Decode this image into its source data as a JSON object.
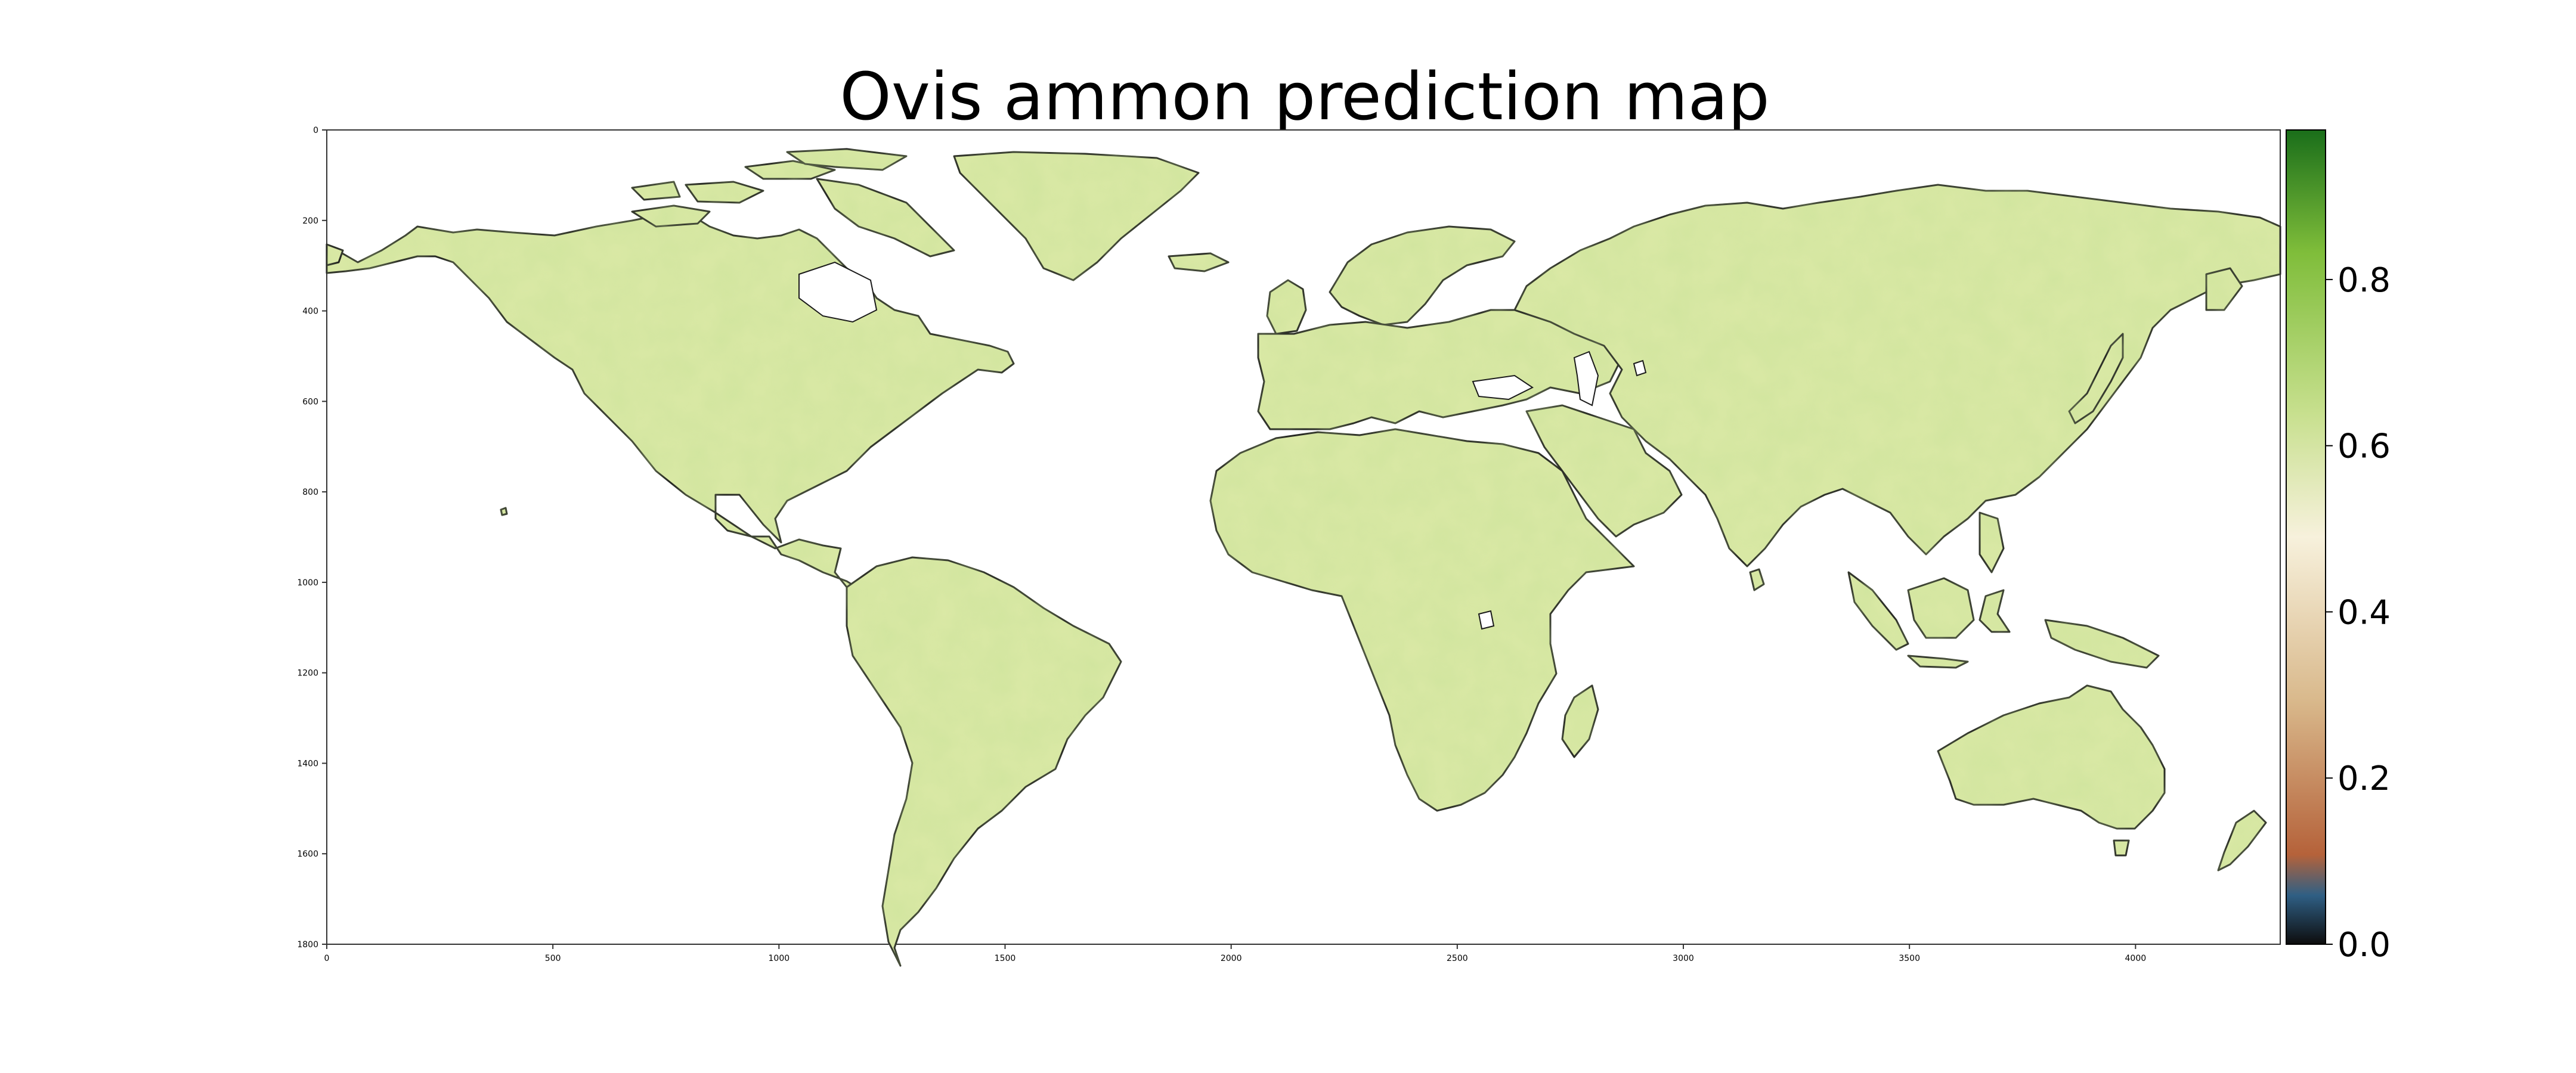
{
  "title": "Ovis ammon prediction map",
  "colors": {
    "land_base": "#dbe9a6",
    "land_dark": "#b9d784",
    "coast": "#1a1a1a",
    "frame": "#333333",
    "colormap": [
      "#0d0d0d",
      "#2f5f84",
      "#b5623a",
      "#d9b98c",
      "#f7f1dc",
      "#c8e08f",
      "#7fbd3a",
      "#1a6e1a"
    ]
  },
  "axes": {
    "x_ticks": [
      "0",
      "500",
      "1000",
      "1500",
      "2000",
      "2500",
      "3000",
      "3500",
      "4000"
    ],
    "y_ticks": [
      "0",
      "200",
      "400",
      "600",
      "800",
      "1000",
      "1200",
      "1400",
      "1600",
      "1800"
    ],
    "x_range": [
      0,
      4320
    ],
    "y_range": [
      0,
      1800
    ]
  },
  "colorbar": {
    "range": [
      0.0,
      0.98
    ],
    "ticks": [
      "0.0",
      "0.2",
      "0.4",
      "0.6",
      "0.8"
    ]
  },
  "regions": [
    {
      "name": "north-america",
      "label": "North America"
    },
    {
      "name": "greenland",
      "label": "Greenland"
    },
    {
      "name": "south-america",
      "label": "South America"
    },
    {
      "name": "europe",
      "label": "Europe"
    },
    {
      "name": "africa",
      "label": "Africa"
    },
    {
      "name": "asia",
      "label": "Asia"
    },
    {
      "name": "australia",
      "label": "Australia"
    }
  ]
}
